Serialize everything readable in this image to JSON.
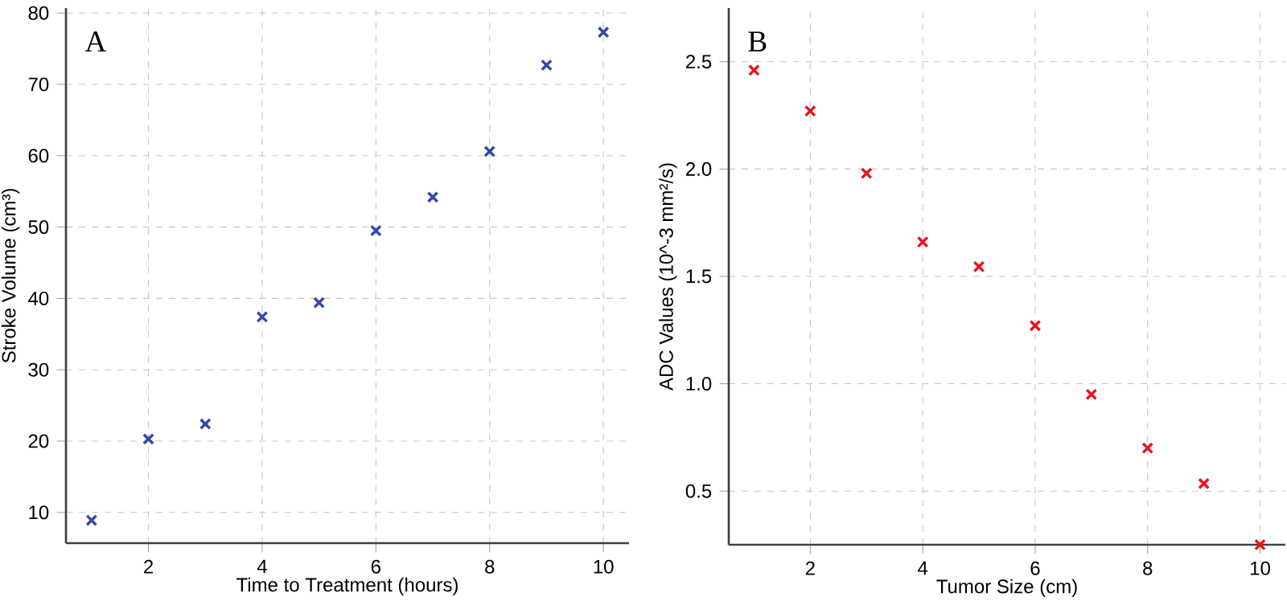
{
  "chart_data": [
    {
      "type": "scatter",
      "title": "A",
      "xlabel": "Time to Treatment (hours)",
      "ylabel": "Stroke Volume (cm³)",
      "x": [
        1,
        2,
        3,
        4,
        5,
        6,
        7,
        8,
        9,
        10
      ],
      "series": [
        {
          "color": "#3547a6",
          "values": [
            8.9,
            20.3,
            22.4,
            37.4,
            39.4,
            49.5,
            54.2,
            60.6,
            72.7,
            77.3
          ]
        }
      ],
      "xlim": [
        0.55,
        10.45
      ],
      "ylim": [
        5.7,
        80.7
      ],
      "xticks": [
        2,
        4,
        6,
        8,
        10
      ],
      "yticks": [
        10,
        20,
        30,
        40,
        50,
        60,
        70,
        80
      ],
      "grid": true,
      "marker": "cross"
    },
    {
      "type": "scatter",
      "title": "B",
      "xlabel": "Tumor Size (cm)",
      "ylabel": "ADC Values (10^-3 mm²/s)",
      "x": [
        1,
        2,
        3,
        4,
        5,
        6,
        7,
        8,
        9,
        10
      ],
      "series": [
        {
          "color": "#e8141e",
          "values": [
            2.46,
            2.27,
            1.98,
            1.66,
            1.545,
            1.27,
            0.95,
            0.7,
            0.535,
            0.25
          ]
        }
      ],
      "xlim": [
        0.55,
        10.45
      ],
      "ylim": [
        0.25,
        2.75
      ],
      "xticks": [
        2,
        4,
        6,
        8,
        10
      ],
      "yticks": [
        0.5,
        {
          "value": 1,
          "label": "1.0"
        },
        1.5,
        {
          "value": 2,
          "label": "2.0"
        },
        2.5
      ],
      "grid": true,
      "marker": "cross"
    }
  ]
}
